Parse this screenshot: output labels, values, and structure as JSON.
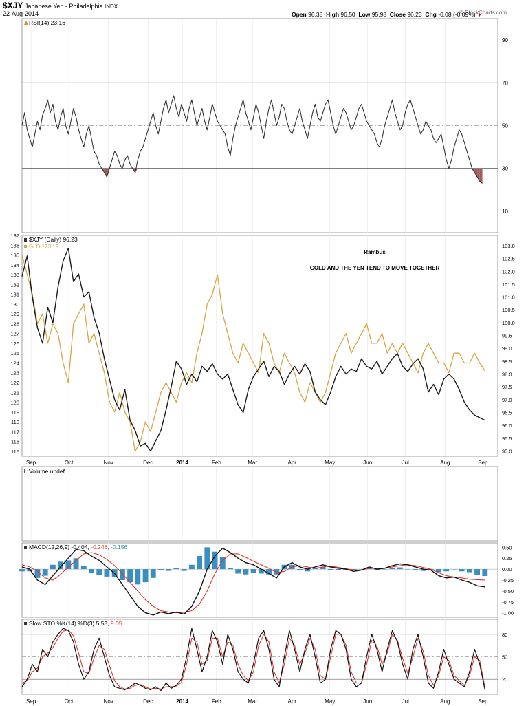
{
  "header": {
    "symbol": "$XJY",
    "name": "Japanese Yen - Philadelphia",
    "exchange": "INDX",
    "date": "22-Aug-2014",
    "watermark": "© StockCharts.com",
    "open_label": "Open",
    "open": "96.38",
    "high_label": "High",
    "high": "96.50",
    "low_label": "Low",
    "low": "95.98",
    "close_label": "Close",
    "close": "96.23",
    "chg_label": "Chg",
    "chg": "-0.08 (-0.09%)",
    "chg_arrow": "▼"
  },
  "colors": {
    "price": "#1a1a1a",
    "gold": "#d9a441",
    "rsi_fill": "#a25c5c",
    "macd_signal": "#e0342c",
    "macd_hist": "#3a8fc0",
    "sto_d": "#e0342c",
    "grid": "#cccccc",
    "dash": "#9a9a9a",
    "header_text": "#000000",
    "chg_red": "#cc0000"
  },
  "x_axis_labels": [
    "Sep",
    "Oct",
    "Nov",
    "Dec",
    "2014",
    "Feb",
    "Mar",
    "Apr",
    "May",
    "Jun",
    "Jul",
    "Aug",
    "Sep"
  ],
  "annotations": {
    "author": "Rambus",
    "note": "GOLD AND THE YEN TEND TO MOVE TOGETHER"
  },
  "chart_data": [
    {
      "panel": "rsi",
      "type": "line",
      "label": "RSI(14) 23.16",
      "y_ticks": [
        "90",
        "70",
        "50",
        "30",
        "10"
      ],
      "ylim": [
        0,
        100
      ],
      "levels": [
        70,
        50,
        30
      ],
      "x": [
        0,
        2,
        4,
        6,
        8,
        10,
        12,
        14,
        16,
        18,
        20,
        22,
        24,
        26,
        28,
        30,
        32,
        34,
        36,
        38,
        40,
        42,
        44,
        46,
        48,
        50,
        52,
        54,
        56,
        58,
        60,
        62,
        64,
        66,
        68,
        70,
        72,
        74,
        76,
        78,
        80,
        82,
        84,
        86,
        88,
        90,
        92,
        94,
        96,
        98,
        100,
        102,
        104,
        106,
        108,
        110,
        112,
        114,
        116,
        118,
        120,
        122,
        124,
        126,
        128,
        130,
        132,
        134,
        136,
        138,
        140,
        142,
        144,
        146,
        148,
        150,
        152,
        154,
        156,
        158,
        160,
        162,
        164,
        166,
        168,
        170,
        172,
        174,
        176,
        178,
        180,
        182,
        184,
        186,
        188,
        190,
        192,
        194,
        196,
        198,
        200,
        202,
        204,
        206,
        208,
        210,
        212,
        214,
        216,
        218,
        220,
        222,
        224,
        226,
        228,
        230,
        232,
        234,
        236,
        238,
        240,
        242,
        244,
        246,
        248,
        250,
        252,
        254,
        256,
        258,
        260,
        262,
        264,
        266,
        268,
        270,
        272,
        274,
        276,
        278,
        280,
        282,
        284,
        286,
        288,
        290,
        292,
        294,
        296,
        298,
        300,
        302,
        304,
        306,
        308,
        310,
        312,
        314,
        316,
        318,
        320,
        322,
        324,
        326,
        328,
        330,
        332,
        334,
        336,
        338,
        340,
        342,
        344,
        346,
        348,
        350,
        352,
        354,
        356,
        358
      ],
      "values": [
        50,
        56,
        48,
        44,
        40,
        46,
        52,
        48,
        55,
        58,
        62,
        56,
        60,
        52,
        48,
        54,
        58,
        50,
        46,
        52,
        58,
        54,
        48,
        44,
        40,
        46,
        50,
        44,
        38,
        36,
        32,
        30,
        28,
        26,
        30,
        34,
        38,
        36,
        32,
        30,
        34,
        36,
        32,
        30,
        28,
        34,
        38,
        40,
        44,
        48,
        52,
        56,
        50,
        46,
        52,
        58,
        62,
        56,
        60,
        64,
        58,
        54,
        60,
        56,
        52,
        58,
        62,
        56,
        50,
        54,
        58,
        52,
        48,
        54,
        60,
        56,
        52,
        50,
        48,
        46,
        40,
        36,
        44,
        50,
        54,
        58,
        62,
        56,
        52,
        48,
        54,
        60,
        56,
        50,
        44,
        52,
        58,
        62,
        56,
        50,
        54,
        60,
        58,
        52,
        48,
        46,
        50,
        54,
        58,
        52,
        48,
        44,
        50,
        56,
        60,
        54,
        52,
        56,
        60,
        62,
        56,
        50,
        46,
        50,
        54,
        58,
        56,
        52,
        48,
        50,
        54,
        58,
        60,
        56,
        52,
        50,
        48,
        46,
        42,
        40,
        44,
        50,
        54,
        58,
        62,
        56,
        52,
        48,
        50,
        56,
        60,
        62,
        58,
        54,
        50,
        46,
        48,
        52,
        50,
        48,
        44,
        42,
        44,
        46,
        40,
        34,
        30,
        34,
        40,
        44,
        48,
        46,
        42,
        38,
        34,
        30,
        28,
        26,
        24,
        23
      ],
      "series": [
        {
          "name": "RSI(14)",
          "last": "23.16"
        }
      ]
    },
    {
      "panel": "price",
      "type": "line",
      "label": "$XJY (Daily) 96.23",
      "gold_label": "GLD 123.19",
      "left_ticks": [
        "137",
        "136",
        "135",
        "134",
        "133",
        "132",
        "131",
        "130",
        "129",
        "128",
        "127",
        "126",
        "125",
        "124",
        "123",
        "122",
        "121",
        "120",
        "119",
        "118",
        "117",
        "116",
        "115"
      ],
      "right_ticks": [
        "103.0",
        "102.5",
        "102.0",
        "101.5",
        "101.0",
        "100.5",
        "100.0",
        "99.5",
        "99.0",
        "98.5",
        "98.0",
        "97.5",
        "97.0",
        "96.5",
        "96.0",
        "95.5",
        "95.0"
      ],
      "ylim_left": [
        114.5,
        137
      ],
      "ylim_right": [
        94.8,
        103.4
      ],
      "x": [
        0,
        4,
        8,
        12,
        16,
        20,
        24,
        28,
        32,
        36,
        40,
        44,
        48,
        52,
        56,
        60,
        64,
        68,
        72,
        76,
        80,
        84,
        88,
        92,
        96,
        100,
        104,
        108,
        112,
        116,
        120,
        124,
        128,
        132,
        136,
        140,
        144,
        148,
        152,
        156,
        160,
        164,
        168,
        172,
        176,
        180,
        184,
        188,
        192,
        196,
        200,
        204,
        208,
        212,
        216,
        220,
        224,
        228,
        232,
        236,
        240,
        244,
        248,
        252,
        256,
        260,
        264,
        268,
        272,
        276,
        280,
        284,
        288,
        292,
        296,
        300,
        304,
        308,
        312,
        316,
        320,
        324,
        328,
        332,
        336,
        340,
        344,
        348,
        352,
        356,
        360
      ],
      "series": [
        {
          "name": "$XJY (Daily)",
          "last": "96.23",
          "values": [
            101.8,
            102.6,
            101.0,
            99.8,
            99.2,
            100.6,
            100.0,
            101.4,
            102.4,
            102.9,
            101.6,
            101.9,
            101.0,
            101.2,
            100.2,
            99.6,
            98.6,
            97.8,
            97.0,
            96.6,
            97.4,
            96.2,
            95.8,
            95.2,
            95.3,
            95.0,
            95.4,
            95.8,
            96.6,
            97.5,
            98.5,
            98.2,
            97.6,
            98.0,
            97.7,
            98.3,
            98.1,
            98.4,
            98.0,
            97.8,
            98.0,
            97.4,
            96.8,
            96.5,
            97.4,
            97.9,
            98.2,
            98.5,
            97.9,
            98.3,
            98.1,
            97.6,
            98.0,
            98.3,
            98.0,
            98.4,
            98.1,
            97.3,
            97.0,
            96.8,
            97.3,
            97.9,
            98.3,
            98.0,
            98.2,
            98.1,
            98.6,
            98.3,
            98.2,
            98.5,
            98.0,
            98.3,
            98.6,
            98.8,
            98.3,
            98.1,
            98.4,
            98.6,
            98.2,
            97.3,
            97.6,
            97.2,
            97.8,
            98.0,
            97.8,
            97.4,
            96.9,
            96.6,
            96.4,
            96.3,
            96.2
          ]
        },
        {
          "name": "GLD",
          "last": "123.19",
          "values": [
            135,
            133,
            131,
            128,
            129,
            126,
            128,
            127,
            124,
            122,
            128,
            129,
            130,
            126,
            127,
            125,
            123,
            120,
            119,
            121,
            119,
            118,
            115,
            116,
            118,
            117,
            119,
            121,
            122,
            121,
            120,
            122,
            123,
            122,
            125,
            127,
            130,
            131,
            133,
            129,
            127,
            125,
            124,
            126,
            125,
            124,
            123,
            127,
            126,
            124,
            123,
            125,
            124,
            123,
            121,
            120,
            122,
            121,
            120,
            121,
            123,
            125,
            126,
            127,
            125,
            126,
            127,
            128,
            126,
            126,
            127,
            125,
            126,
            125,
            126,
            125,
            124,
            123,
            125,
            126,
            125,
            124,
            124,
            123,
            125,
            125,
            124,
            124,
            125,
            124,
            123.2
          ]
        }
      ]
    },
    {
      "panel": "volume",
      "type": "bar",
      "label": "Volume undef",
      "values": []
    },
    {
      "panel": "macd",
      "type": "line",
      "label": "MACD(12,26,9)",
      "macd_value": "-0.404,",
      "signal_value": "-0.248,",
      "hist_value": "-0.156",
      "y_ticks": [
        "0.50",
        "0.25",
        "0.00",
        "-0.25",
        "-0.50",
        "-0.75",
        "-1.00"
      ],
      "ylim": [
        -1.1,
        0.6
      ],
      "x": [
        0,
        6,
        12,
        18,
        24,
        30,
        36,
        42,
        48,
        54,
        60,
        66,
        72,
        78,
        84,
        90,
        96,
        102,
        108,
        114,
        120,
        126,
        132,
        138,
        144,
        150,
        156,
        162,
        168,
        174,
        180,
        186,
        192,
        198,
        204,
        210,
        216,
        222,
        228,
        234,
        240,
        246,
        252,
        258,
        264,
        270,
        276,
        282,
        288,
        294,
        300,
        306,
        312,
        318,
        324,
        330,
        336,
        342,
        348,
        354,
        360
      ],
      "series": [
        {
          "name": "MACD",
          "values": [
            0.05,
            0.0,
            -0.25,
            -0.35,
            -0.15,
            0.05,
            0.25,
            0.45,
            0.42,
            0.3,
            0.2,
            0.05,
            -0.1,
            -0.35,
            -0.6,
            -0.85,
            -1.0,
            -1.05,
            -0.98,
            -1.02,
            -0.98,
            -1.03,
            -0.85,
            -0.5,
            0.0,
            0.3,
            0.48,
            0.38,
            0.25,
            0.15,
            0.1,
            0.0,
            -0.1,
            -0.2,
            0.05,
            0.15,
            0.05,
            0.0,
            0.05,
            0.1,
            0.05,
            0.02,
            0.0,
            -0.05,
            -0.02,
            0.05,
            0.0,
            0.02,
            0.08,
            0.12,
            0.1,
            0.05,
            0.0,
            -0.02,
            -0.15,
            -0.2,
            -0.18,
            -0.25,
            -0.3,
            -0.38,
            -0.404
          ]
        },
        {
          "name": "Signal",
          "values": [
            0.1,
            0.05,
            -0.05,
            -0.2,
            -0.25,
            -0.12,
            0.05,
            0.2,
            0.35,
            0.38,
            0.33,
            0.22,
            0.08,
            -0.1,
            -0.3,
            -0.5,
            -0.7,
            -0.85,
            -0.95,
            -0.98,
            -1.0,
            -0.99,
            -0.95,
            -0.8,
            -0.5,
            -0.1,
            0.2,
            0.35,
            0.35,
            0.27,
            0.18,
            0.1,
            0.02,
            -0.08,
            -0.05,
            0.05,
            0.08,
            0.05,
            0.02,
            0.05,
            0.07,
            0.04,
            0.01,
            -0.02,
            -0.02,
            0.02,
            0.02,
            0.02,
            0.05,
            0.08,
            0.1,
            0.08,
            0.04,
            0.0,
            -0.08,
            -0.15,
            -0.18,
            -0.2,
            -0.23,
            -0.24,
            -0.248
          ]
        }
      ]
    },
    {
      "panel": "stochastic",
      "type": "line",
      "label": "Slow STO %K(14) %D(3)",
      "k_value": "5.53,",
      "d_value": "9.05",
      "y_ticks": [
        "80",
        "50",
        "20"
      ],
      "ylim": [
        0,
        100
      ],
      "levels": [
        80,
        50,
        20
      ],
      "x": [
        0,
        4,
        8,
        12,
        16,
        20,
        24,
        28,
        32,
        36,
        40,
        44,
        48,
        52,
        56,
        60,
        64,
        68,
        72,
        76,
        80,
        84,
        88,
        92,
        96,
        100,
        104,
        108,
        112,
        116,
        120,
        124,
        128,
        132,
        136,
        140,
        144,
        148,
        152,
        156,
        160,
        164,
        168,
        172,
        176,
        180,
        184,
        188,
        192,
        196,
        200,
        204,
        208,
        212,
        216,
        220,
        224,
        228,
        232,
        236,
        240,
        244,
        248,
        252,
        256,
        260,
        264,
        268,
        272,
        276,
        280,
        284,
        288,
        292,
        296,
        300,
        304,
        308,
        312,
        316,
        320,
        324,
        328,
        332,
        336,
        340,
        344,
        348,
        352,
        356,
        360
      ],
      "series": [
        {
          "name": "%K",
          "values": [
            10,
            20,
            40,
            30,
            60,
            50,
            70,
            80,
            88,
            85,
            70,
            40,
            20,
            30,
            60,
            75,
            50,
            25,
            10,
            8,
            6,
            10,
            15,
            12,
            8,
            6,
            10,
            5,
            15,
            8,
            12,
            20,
            50,
            88,
            60,
            30,
            50,
            85,
            70,
            40,
            80,
            60,
            30,
            20,
            15,
            40,
            75,
            85,
            60,
            20,
            10,
            50,
            85,
            60,
            30,
            60,
            80,
            50,
            15,
            20,
            60,
            85,
            80,
            60,
            20,
            10,
            15,
            50,
            80,
            60,
            30,
            60,
            85,
            70,
            40,
            20,
            60,
            80,
            50,
            15,
            8,
            30,
            60,
            40,
            20,
            15,
            10,
            30,
            60,
            40,
            6
          ]
        },
        {
          "name": "%D",
          "values": [
            15,
            18,
            30,
            35,
            50,
            55,
            62,
            75,
            84,
            86,
            78,
            55,
            30,
            28,
            48,
            65,
            60,
            38,
            18,
            10,
            7,
            8,
            12,
            13,
            10,
            7,
            8,
            7,
            10,
            10,
            11,
            16,
            40,
            75,
            70,
            40,
            45,
            75,
            75,
            50,
            70,
            65,
            40,
            25,
            18,
            30,
            65,
            80,
            70,
            30,
            15,
            40,
            75,
            65,
            40,
            55,
            75,
            60,
            25,
            20,
            50,
            80,
            80,
            65,
            30,
            15,
            15,
            40,
            72,
            65,
            40,
            55,
            80,
            72,
            48,
            28,
            50,
            75,
            58,
            25,
            12,
            25,
            50,
            45,
            25,
            18,
            12,
            25,
            50,
            45,
            9
          ]
        }
      ]
    }
  ]
}
